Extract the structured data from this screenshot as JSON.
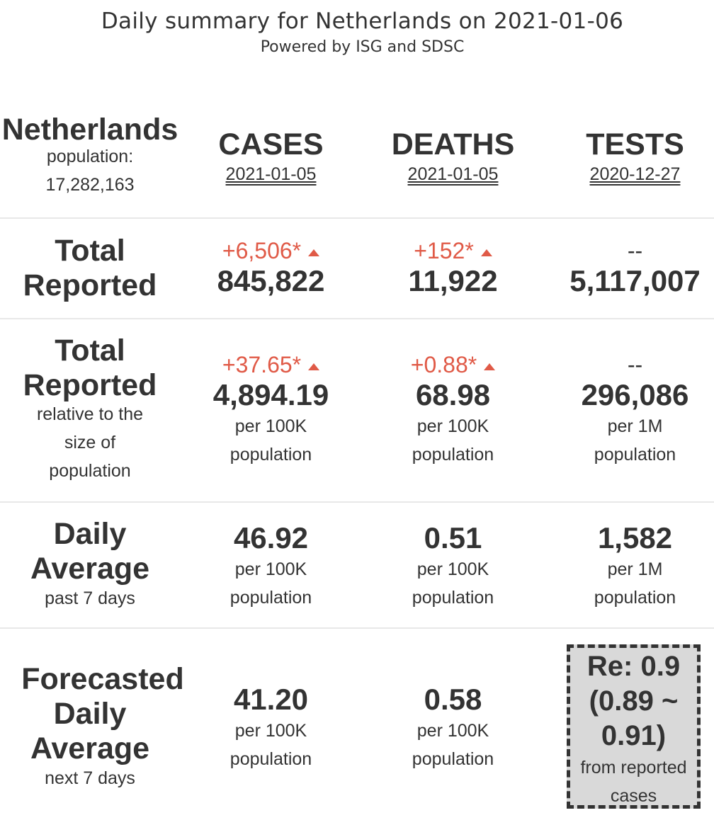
{
  "title": "Daily summary for Netherlands on 2021-01-06",
  "subtitle": "Powered by ISG and SDSC",
  "header": {
    "country": "Netherlands",
    "population_label": "population:",
    "population_value": "17,282,163",
    "columns": [
      {
        "name": "CASES",
        "date": "2021-01-05"
      },
      {
        "name": "DEATHS",
        "date": "2021-01-05"
      },
      {
        "name": "TESTS",
        "date": "2020-12-27"
      }
    ]
  },
  "rows": {
    "total": {
      "label_line1": "Total",
      "label_line2": "Reported",
      "cases": {
        "delta": "+6,506*",
        "value": "845,822"
      },
      "deaths": {
        "delta": "+152*",
        "value": "11,922"
      },
      "tests": {
        "delta": "--",
        "value": "5,117,007"
      }
    },
    "relative": {
      "label_line1": "Total",
      "label_line2": "Reported",
      "sub1": "relative to the",
      "sub2": "size of",
      "sub3": "population",
      "cases": {
        "delta": "+37.65*",
        "value": "4,894.19",
        "unit1": "per 100K",
        "unit2": "population"
      },
      "deaths": {
        "delta": "+0.88*",
        "value": "68.98",
        "unit1": "per 100K",
        "unit2": "population"
      },
      "tests": {
        "delta": "--",
        "value": "296,086",
        "unit1": "per 1M",
        "unit2": "population"
      }
    },
    "daily": {
      "label_line1": "Daily",
      "label_line2": "Average",
      "sub": "past 7 days",
      "cases": {
        "value": "46.92",
        "unit1": "per 100K",
        "unit2": "population"
      },
      "deaths": {
        "value": "0.51",
        "unit1": "per 100K",
        "unit2": "population"
      },
      "tests": {
        "value": "1,582",
        "unit1": "per 1M",
        "unit2": "population"
      }
    },
    "forecast": {
      "label_line1": "Forecasted",
      "label_line2": "Daily",
      "label_line3": "Average",
      "sub": "next 7 days",
      "cases": {
        "value": "41.20",
        "unit1": "per 100K",
        "unit2": "population"
      },
      "deaths": {
        "value": "0.58",
        "unit1": "per 100K",
        "unit2": "population"
      },
      "re": {
        "line1": "Re: 0.9",
        "line2": "(0.89 ~",
        "line3": "0.91)",
        "sub1": "from reported",
        "sub2": "cases"
      }
    }
  },
  "colors": {
    "text": "#333333",
    "delta_red": "#e05a47",
    "re_box_bg": "#d9d9d9",
    "divider": "#e8e8e8"
  }
}
